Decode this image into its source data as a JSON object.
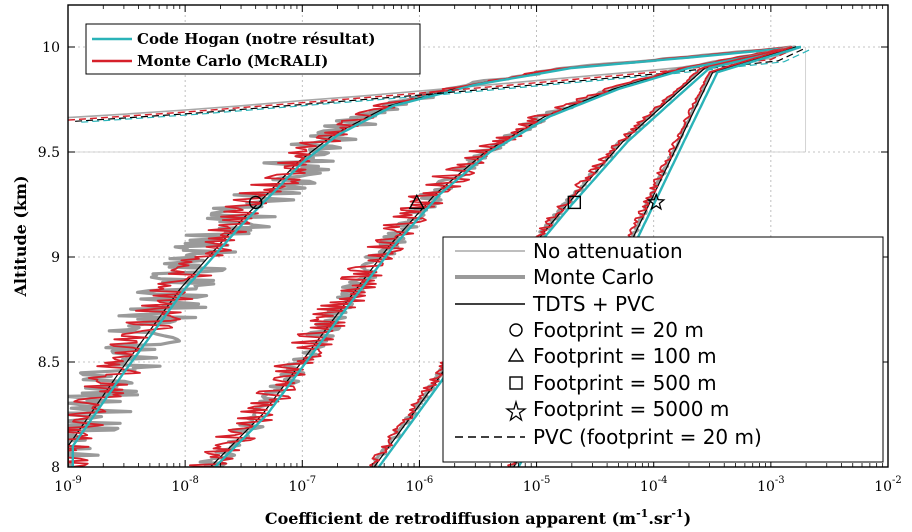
{
  "chart_data": {
    "type": "line",
    "xlabel": "Coefficient de retrodiffusion apparent (m",
    "xlabel_sup1": "-1",
    "xlabel_mid": ".sr",
    "xlabel_sup2": "-1",
    "xlabel_end": ")",
    "ylabel": "Altitude (km)",
    "xscale": "log",
    "xlim": [
      1e-09,
      0.01
    ],
    "ylim": [
      8,
      10.2
    ],
    "grid": true,
    "x_ticks": [
      {
        "base": "10",
        "exp": "-9",
        "value": 1e-09
      },
      {
        "base": "10",
        "exp": "-8",
        "value": 1e-08
      },
      {
        "base": "10",
        "exp": "-7",
        "value": 1e-07
      },
      {
        "base": "10",
        "exp": "-6",
        "value": 1e-06
      },
      {
        "base": "10",
        "exp": "-5",
        "value": 1e-05
      },
      {
        "base": "10",
        "exp": "-4",
        "value": 0.0001
      },
      {
        "base": "10",
        "exp": "-3",
        "value": 0.001
      },
      {
        "base": "10",
        "exp": "-2",
        "value": 0.01
      }
    ],
    "y_ticks": [
      {
        "label": "8",
        "value": 8
      },
      {
        "label": "8.5",
        "value": 8.5
      },
      {
        "label": "9",
        "value": 9
      },
      {
        "label": "9.5",
        "value": 9.5
      },
      {
        "label": "10",
        "value": 10
      }
    ],
    "legend_top": [
      {
        "label": "Code Hogan (notre résultat)",
        "color": "#2ab3b8"
      },
      {
        "label": "Monte Carlo (McRALI)",
        "color": "#d6202a"
      }
    ],
    "legend_bottom": [
      {
        "label": "No attenuation",
        "style": "line",
        "color": "#a8a8a8"
      },
      {
        "label": "Monte Carlo",
        "style": "thickline",
        "color": "#9a9a9a"
      },
      {
        "label": "TDTS + PVC",
        "style": "line",
        "color": "#000000"
      },
      {
        "label": "Footprint = 20 m",
        "style": "marker",
        "marker": "circle"
      },
      {
        "label": "Footprint = 100 m",
        "style": "marker",
        "marker": "triangle"
      },
      {
        "label": "Footprint = 500 m",
        "style": "marker",
        "marker": "square"
      },
      {
        "label": "Footprint = 5000 m",
        "style": "marker",
        "marker": "star"
      },
      {
        "label": "PVC (footprint = 20 m)",
        "style": "dashed",
        "color": "#000000"
      }
    ],
    "colors": {
      "hogan": "#2ab3b8",
      "montecarlo_mcrali": "#d6202a",
      "noatt": "#a8a8a8",
      "mc_gray": "#9a9a9a",
      "tdts": "#000000"
    },
    "no_attenuation": {
      "x": [
        1e-09,
        3e-09,
        1e-08,
        3e-08,
        1e-07,
        3e-07,
        1e-06,
        1e-05,
        0.0001,
        0.001,
        0.0018
      ],
      "y": [
        9.664,
        9.68,
        9.7,
        9.72,
        9.745,
        9.765,
        9.79,
        9.84,
        9.89,
        9.945,
        10.0
      ]
    },
    "curves": [
      {
        "footprint": "20 m",
        "marker": "circle",
        "marker_at": [
          4e-08,
          9.26
        ],
        "hogan": {
          "x": [
            1.1e-09,
            3e-09,
            1e-08,
            3e-08,
            5.5e-08,
            1e-07,
            2e-07,
            6e-07,
            3e-06,
            2e-05,
            0.0002,
            0.0018
          ],
          "y": [
            8.1,
            8.45,
            8.85,
            9.15,
            9.3,
            9.45,
            9.58,
            9.72,
            9.82,
            9.9,
            9.95,
            10.0
          ]
        },
        "mcrali_noise": 0.22,
        "gray_noise": 0.35,
        "pvc": {
          "x": [
            1e-09,
            1e-08,
            1e-07,
            1e-06,
            1e-05,
            0.0001,
            0.001,
            0.0017
          ],
          "y": [
            9.652,
            9.69,
            9.735,
            9.78,
            9.83,
            9.88,
            9.94,
            10.0
          ]
        }
      },
      {
        "footprint": "100 m",
        "marker": "triangle",
        "marker_at": [
          9.5e-07,
          9.26
        ],
        "hogan": {
          "x": [
            1.8e-08,
            5e-08,
            2e-07,
            6e-07,
            1.5e-06,
            4e-06,
            1.3e-05,
            5e-05,
            0.0002,
            0.0018
          ],
          "y": [
            8.0,
            8.25,
            8.7,
            9.05,
            9.3,
            9.5,
            9.67,
            9.8,
            9.9,
            10.0
          ]
        },
        "mcrali_noise": 0.18,
        "gray_noise": 0.12
      },
      {
        "footprint": "500 m",
        "marker": "square",
        "marker_at": [
          2.1e-05,
          9.26
        ],
        "hogan": {
          "x": [
            4.5e-07,
            1.5e-06,
            6e-06,
            2e-05,
            6e-05,
            0.00015,
            0.0003,
            0.0018
          ],
          "y": [
            8.0,
            8.4,
            8.9,
            9.25,
            9.55,
            9.75,
            9.9,
            10.0
          ]
        },
        "mcrali_noise": 0.05,
        "gray_noise": 0.03
      },
      {
        "footprint": "5000 m",
        "marker": "star",
        "marker_at": [
          0.000105,
          9.26
        ],
        "hogan": {
          "x": [
            7e-06,
            2e-05,
            5e-05,
            0.0001,
            0.0002,
            0.00035,
            0.0018
          ],
          "y": [
            8.0,
            8.45,
            8.9,
            9.25,
            9.6,
            9.88,
            10.0
          ]
        },
        "mcrali_noise": 0.03,
        "gray_noise": 0.02
      }
    ]
  }
}
